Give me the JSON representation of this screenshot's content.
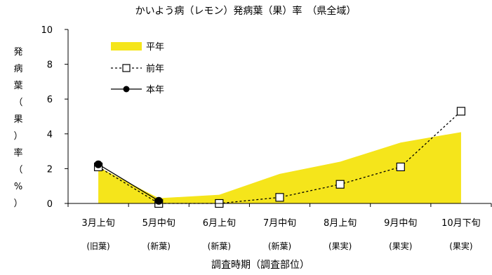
{
  "chart_data": {
    "type": "area",
    "title": "かいよう病（レモン）発病葉（果）率　（県全域）",
    "xlabel": "調査時期（調査部位）",
    "ylabel": [
      "発",
      "病",
      "葉",
      "（",
      "果",
      "）",
      "率",
      "（",
      "%",
      "）"
    ],
    "ylim": [
      0,
      10
    ],
    "yticks": [
      0,
      2,
      4,
      6,
      8,
      10
    ],
    "categories": [
      "3月上旬",
      "5月中旬",
      "6月上旬",
      "7月中旬",
      "8月上旬",
      "9月中旬",
      "10月下旬"
    ],
    "sublabels": [
      "(旧葉)",
      "(新葉)",
      "(新葉)",
      "(新葉)",
      "(果実)",
      "(果実)",
      "(果実)"
    ],
    "series": [
      {
        "name": "平年",
        "kind": "area",
        "color": "#f5e51b",
        "values": [
          2.1,
          0.3,
          0.5,
          1.7,
          2.4,
          3.5,
          4.1
        ]
      },
      {
        "name": "前年",
        "kind": "dashed-line-open-square",
        "color": "#000000",
        "values": [
          2.1,
          0.0,
          0.0,
          0.35,
          1.1,
          2.1,
          5.3
        ]
      },
      {
        "name": "本年",
        "kind": "line-filled-circle",
        "color": "#000000",
        "values": [
          2.25,
          0.15,
          null,
          null,
          null,
          null,
          null
        ]
      }
    ],
    "legend_position": "top-left",
    "grid": false
  }
}
